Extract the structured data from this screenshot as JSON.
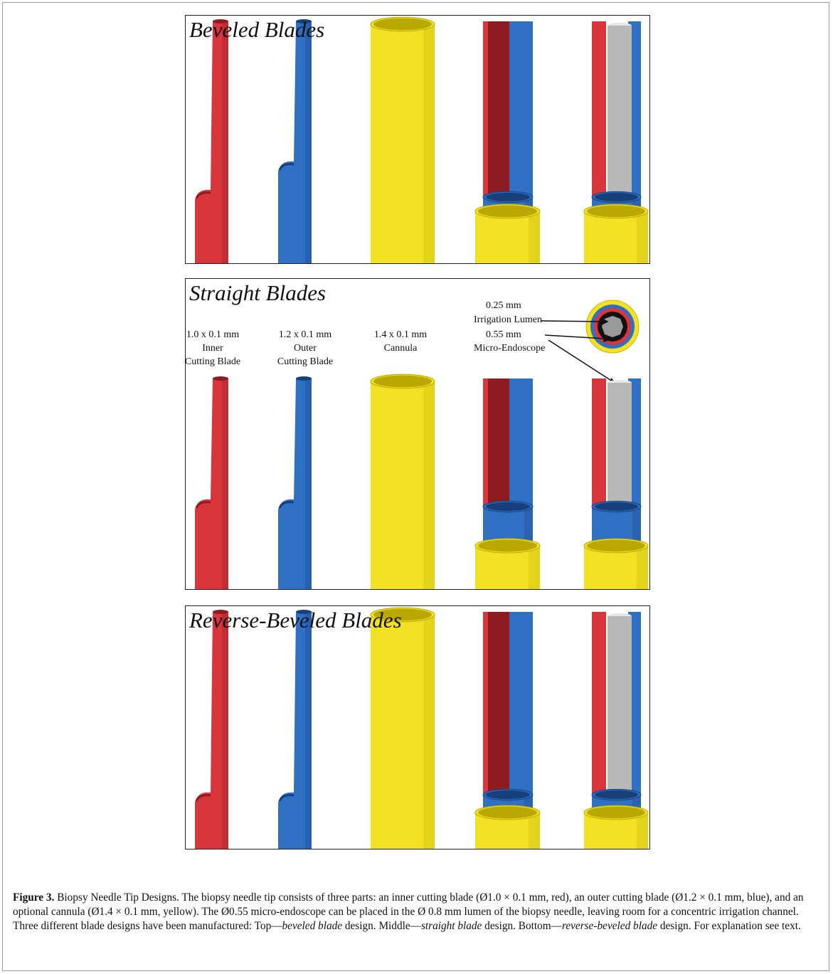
{
  "panels": [
    {
      "title": "Beveled Blades"
    },
    {
      "title": "Straight Blades",
      "labels": [
        {
          "lines": [
            "1.0 x 0.1 mm",
            "Inner",
            "Cutting Blade"
          ]
        },
        {
          "lines": [
            "1.2 x 0.1 mm",
            "Outer",
            "Cutting Blade"
          ]
        },
        {
          "lines": [
            "1.4 x 0.1 mm",
            "Cannula"
          ]
        }
      ],
      "annotations": [
        "0.25 mm",
        "Irrigation Lumen",
        "0.55 mm",
        "Micro-Endoscope"
      ]
    },
    {
      "title": "Reverse-Beveled Blades"
    }
  ],
  "caption": {
    "label": "Figure 3.",
    "parts": [
      "Biopsy Needle Tip Designs. The biopsy needle tip consists of three parts: an inner cutting blade (Ø1.0 × 0.1 mm, red), an outer cutting blade (Ø1.2 × 0.1 mm, blue), and an optional cannula (Ø1.4 × 0.1 mm, yellow). The Ø0.55 micro-endoscope can be placed in the Ø 0.8 mm lumen of the biopsy needle, leaving room for a concentric irrigation channel. Three different blade designs have been manufactured: Top—",
      "beveled blade",
      " design. Middle—",
      "straight blade",
      " design. Bottom—",
      "reverse-beveled blade",
      " design. For explanation see text."
    ]
  }
}
